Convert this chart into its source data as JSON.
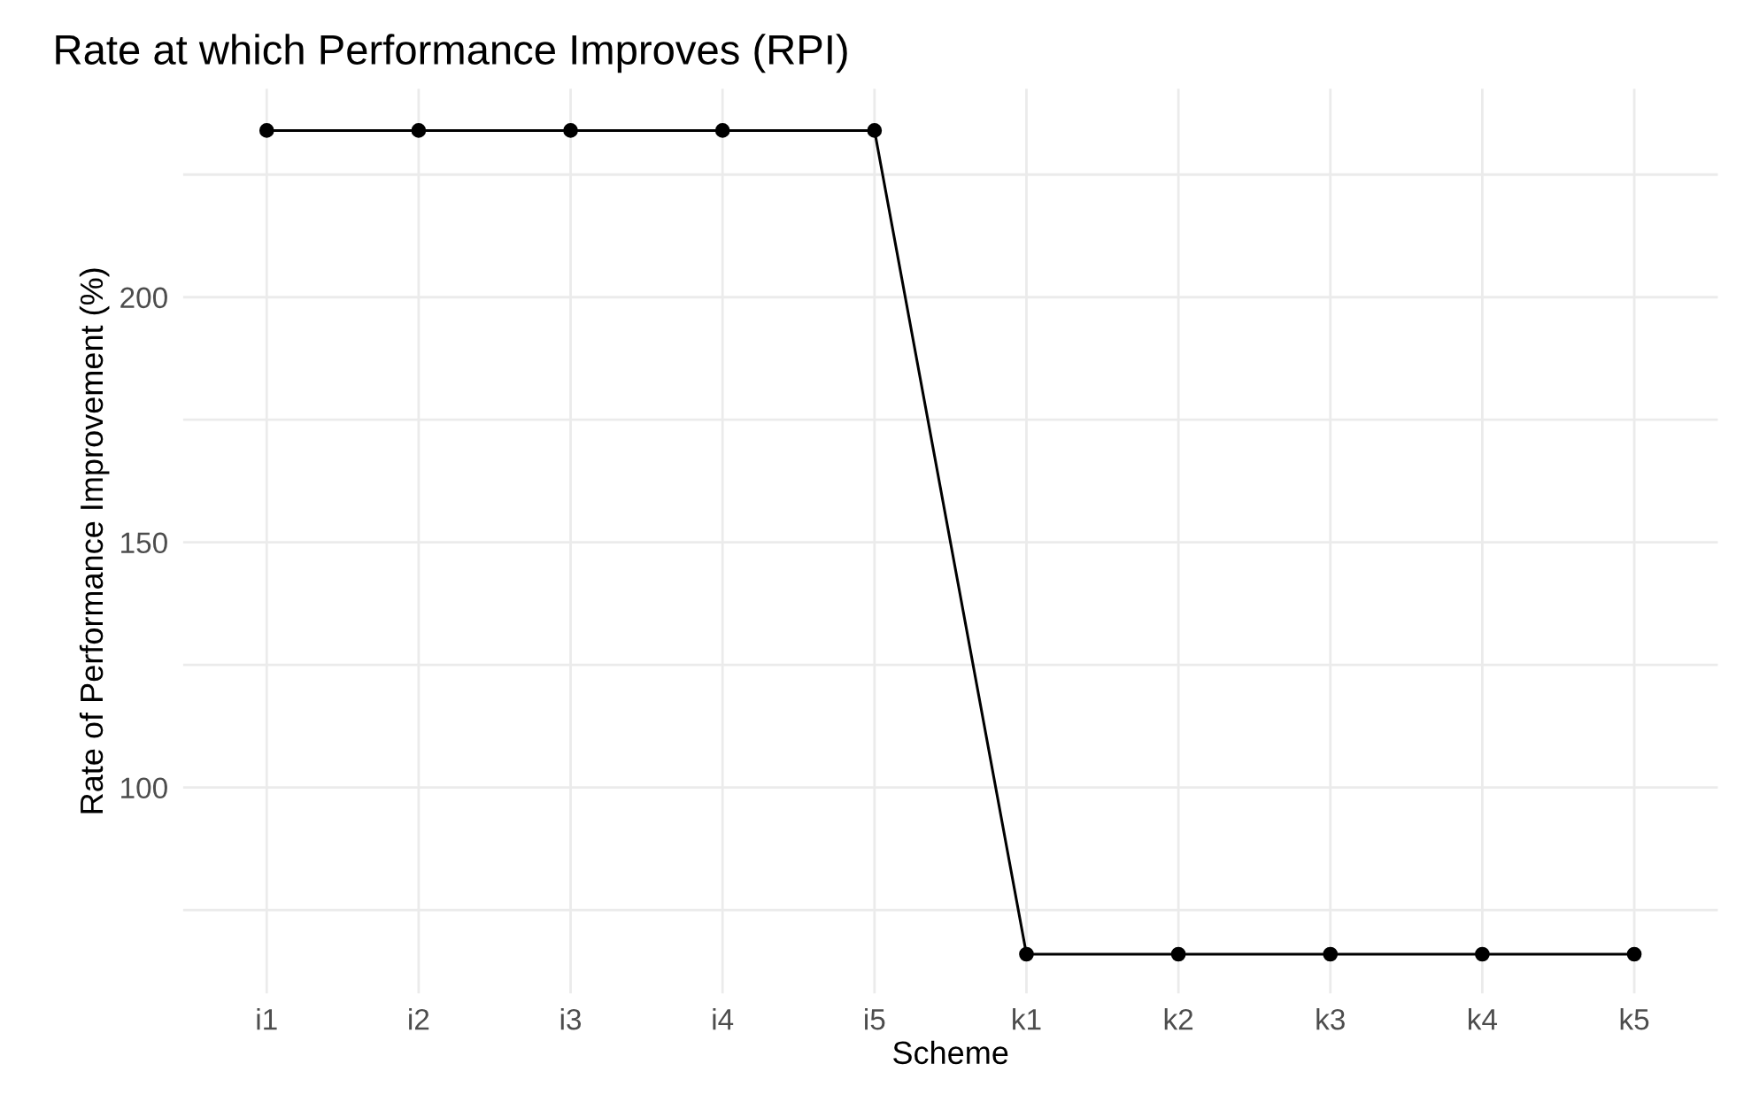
{
  "chart_data": {
    "type": "line",
    "title": "Rate at which Performance Improves (RPI)",
    "xlabel": "Scheme",
    "ylabel": "Rate of Performance Improvement (%)",
    "categories": [
      "i1",
      "i2",
      "i3",
      "i4",
      "i5",
      "k1",
      "k2",
      "k3",
      "k4",
      "k5"
    ],
    "series": [
      {
        "color": "#000000",
        "values": [
          234,
          234,
          234,
          234,
          234,
          66,
          66,
          66,
          66,
          66
        ]
      }
    ],
    "ylim": [
      58,
      242.5
    ],
    "yticks": [
      {
        "value": 75,
        "label": null
      },
      100,
      {
        "value": 125,
        "label": null
      },
      150,
      {
        "value": 175,
        "label": null
      },
      200,
      {
        "value": 225,
        "label": null
      }
    ],
    "grid": true,
    "marker": "circle",
    "line_style": "solid",
    "legend": false
  }
}
